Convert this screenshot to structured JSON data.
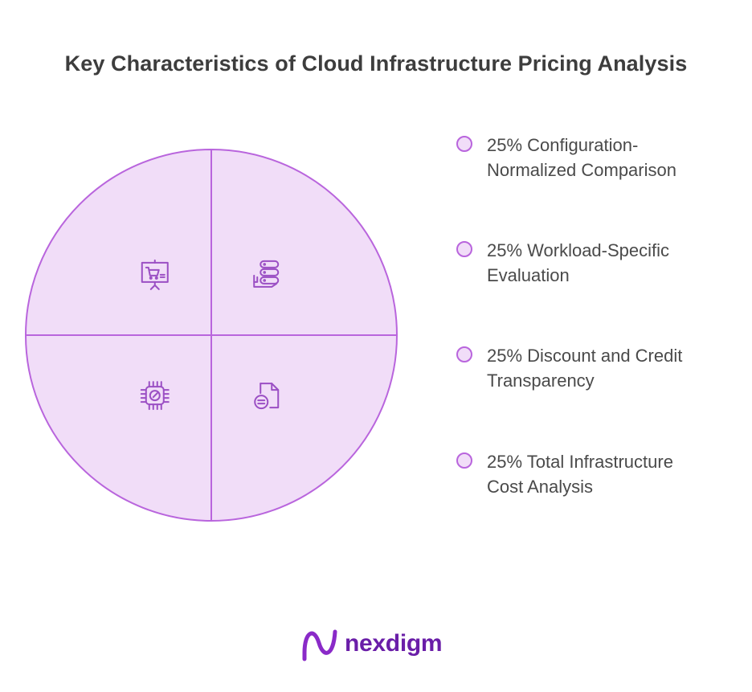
{
  "chart_data": {
    "type": "pie",
    "title": "Key Characteristics of Cloud Infrastructure Pricing Analysis",
    "slices": [
      {
        "label": "Configuration-Normalized Comparison",
        "value": 25,
        "icon": "server-stack-icon"
      },
      {
        "label": "Workload-Specific Evaluation",
        "value": 25,
        "icon": "document-icon"
      },
      {
        "label": "Total Infrastructure Cost Analysis",
        "value": 25,
        "icon": "cpu-chip-icon"
      },
      {
        "label": "Discount and Credit Transparency",
        "value": 25,
        "icon": "presentation-cart-icon"
      }
    ],
    "legend_placement": "right",
    "colors": {
      "fill": "#f1ddf8",
      "stroke": "#b965dd",
      "icon": "#9b4fc4"
    }
  },
  "legend": {
    "items": [
      {
        "lines": [
          "25% Configuration-",
          "Normalized Comparison"
        ]
      },
      {
        "lines": [
          "25% Workload-Specific",
          "Evaluation"
        ]
      },
      {
        "lines": [
          "25% Discount and Credit",
          "Transparency"
        ]
      },
      {
        "lines": [
          "25% Total Infrastructure",
          "Cost Analysis"
        ]
      }
    ]
  },
  "brand": {
    "name": "nexdigm",
    "color": "#6a1ea8"
  }
}
